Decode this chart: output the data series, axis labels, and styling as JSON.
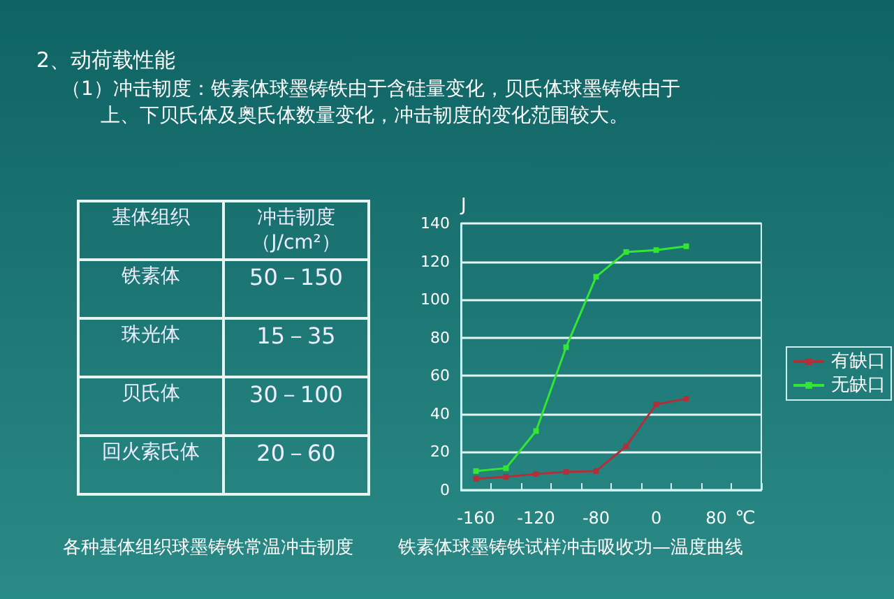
{
  "chart_data": [
    {
      "type": "other",
      "title": "2、动荷载性能",
      "subtitle": "（1）冲击韧度：铁素体球墨铸铁由于含硅量变化，贝氏体球墨铸铁由于上、下贝氏体及奥氏体数量变化，冲击韧度的变化范围较大。",
      "categories": [
        "基体组织",
        "冲击韧度（J/cm²）"
      ],
      "y_categories": [
        "铁素体",
        "珠光体",
        "贝氏体",
        "回火索氏体"
      ],
      "cell_labels": [
        [
          "50－150"
        ],
        [
          "15－35"
        ],
        [
          "30－100"
        ],
        [
          "20－60"
        ]
      ],
      "annotations": [
        "各种基体组织球墨铸铁常温冲击韧度"
      ]
    },
    {
      "type": "line",
      "ylabel": "J",
      "xlabel": "℃",
      "categories": [
        "-160",
        null,
        "-120",
        null,
        "-80",
        null,
        "0",
        null,
        "80",
        null
      ],
      "ylim": [
        0,
        140
      ],
      "yticks": [
        0,
        20,
        40,
        60,
        80,
        100,
        120,
        140
      ],
      "grid": "y",
      "legend": "right",
      "marker": "square",
      "annotations": [
        "铁素体球墨铸铁试样冲击吸收功—温度曲线"
      ],
      "series": [
        {
          "name": "有缺口",
          "color": "#b0303a",
          "values": [
            6,
            7,
            8.5,
            9.5,
            10,
            23,
            45,
            48,
            null,
            null
          ]
        },
        {
          "name": "无缺口",
          "color": "#33e633",
          "values": [
            10,
            11.5,
            31,
            75,
            112,
            125,
            126,
            128,
            null,
            null
          ]
        }
      ]
    }
  ]
}
